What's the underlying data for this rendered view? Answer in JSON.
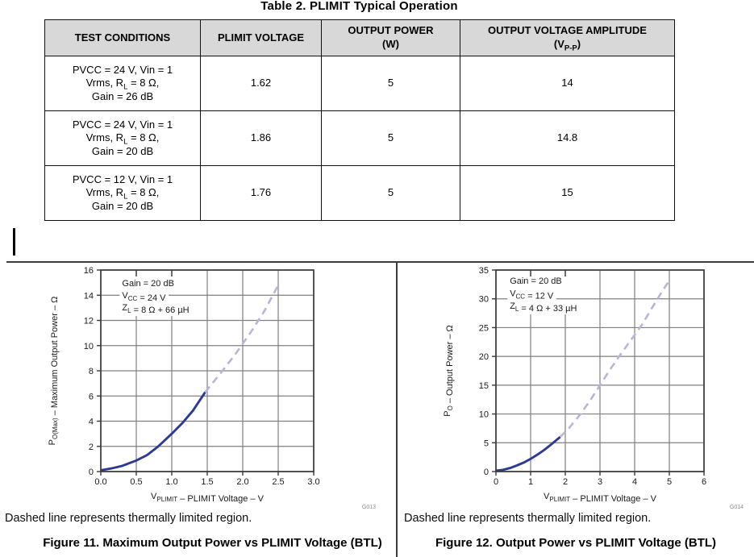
{
  "colors": {
    "solid_curve": "#2b3a97",
    "dashed_curve": "#b7b6da",
    "grid": "#808080",
    "plot_border": "#3a3a3a",
    "table_header_bg": "#d8d8d8",
    "rule": "#3c3c3c",
    "graph_id_text": "#8c8c8c"
  },
  "table": {
    "title": "Table 2. PLIMIT Typical Operation",
    "headers": [
      [
        [
          {
            "t": "TEST CONDITIONS"
          }
        ]
      ],
      [
        [
          {
            "t": "PLIMIT VOLTAGE"
          }
        ]
      ],
      [
        [
          {
            "t": "OUTPUT POWER"
          }
        ],
        [
          {
            "t": "(W)"
          }
        ]
      ],
      [
        [
          {
            "t": "OUTPUT VOLTAGE AMPLITUDE"
          }
        ],
        [
          {
            "t": "(V"
          },
          {
            "t": "P-P",
            "sub": true
          },
          {
            "t": ")"
          }
        ]
      ]
    ],
    "rows": [
      {
        "test_conditions": [
          [
            {
              "t": "PVCC = 24 V, Vin = 1"
            }
          ],
          [
            {
              "t": "Vrms, R"
            },
            {
              "t": "L",
              "sub": true
            },
            {
              "t": " = 8 Ω,"
            }
          ],
          [
            {
              "t": "Gain = 26 dB"
            }
          ]
        ],
        "plimit_voltage": "1.62",
        "output_power": "5",
        "output_voltage_amplitude": "14"
      },
      {
        "test_conditions": [
          [
            {
              "t": "PVCC = 24 V, Vin = 1"
            }
          ],
          [
            {
              "t": "Vrms, R"
            },
            {
              "t": "L",
              "sub": true
            },
            {
              "t": " = 8 Ω,"
            }
          ],
          [
            {
              "t": "Gain = 20 dB"
            }
          ]
        ],
        "plimit_voltage": "1.86",
        "output_power": "5",
        "output_voltage_amplitude": "14.8"
      },
      {
        "test_conditions": [
          [
            {
              "t": "PVCC = 12 V, Vin = 1"
            }
          ],
          [
            {
              "t": "Vrms, R"
            },
            {
              "t": "L",
              "sub": true
            },
            {
              "t": " = 8 Ω,"
            }
          ],
          [
            {
              "t": "Gain = 20 dB"
            }
          ]
        ],
        "plimit_voltage": "1.76",
        "output_power": "5",
        "output_voltage_amplitude": "15"
      }
    ]
  },
  "figures": {
    "left_note": "Dashed line represents thermally limited region.",
    "right_note": "Dashed line represents thermally limited region.",
    "left_caption": "Figure 11. Maximum Output Power vs PLIMIT Voltage (BTL)",
    "right_caption": "Figure 12. Output Power vs PLIMIT Voltage (BTL)"
  },
  "chart_data": [
    {
      "type": "line",
      "title": "Figure 11. Maximum Output Power vs PLIMIT Voltage (BTL)",
      "note": "Dashed line represents thermally limited region.",
      "graph_id": "G013",
      "xlabel": "VPLIMIT – PLIMIT Voltage – V",
      "ylabel": "PO(Max) – Maximum Output Power – Ω",
      "xlabel_segments": [
        {
          "t": "V"
        },
        {
          "t": "PLIMIT",
          "sub": true
        },
        {
          "t": " – PLIMIT Voltage – V"
        }
      ],
      "ylabel_segments": [
        {
          "t": "P"
        },
        {
          "t": "O(Max)",
          "sub": true
        },
        {
          "t": " – Maximum Output Power – Ω"
        }
      ],
      "xlim": [
        0,
        3
      ],
      "ylim": [
        0,
        16
      ],
      "grid": true,
      "legend": "none",
      "xticks": [
        0,
        0.5,
        1,
        1.5,
        2,
        2.5,
        3
      ],
      "xtick_labels": [
        "0.0",
        "0.5",
        "1.0",
        "1.5",
        "2.0",
        "2.5",
        "3.0"
      ],
      "yticks": [
        0,
        2,
        4,
        6,
        8,
        10,
        12,
        14,
        16
      ],
      "ytick_labels": [
        "0",
        "2",
        "4",
        "6",
        "8",
        "10",
        "12",
        "14",
        "16"
      ],
      "top_ticks": [
        0.5,
        1
      ],
      "masked_vgrid": [
        0.5,
        1
      ],
      "annotation_lines": [
        [
          {
            "t": "Gain = 20 dB"
          }
        ],
        [
          {
            "t": "V"
          },
          {
            "t": "CC",
            "sub": true
          },
          {
            "t": " = 24 V"
          }
        ],
        [
          {
            "t": "Z"
          },
          {
            "t": "L",
            "sub": true
          },
          {
            "t": " = 8 Ω + 66 µH"
          }
        ]
      ],
      "series": [
        {
          "name": "typical-operation",
          "style": "solid",
          "points": [
            [
              0,
              0.1
            ],
            [
              0.15,
              0.25
            ],
            [
              0.3,
              0.45
            ],
            [
              0.5,
              0.88
            ],
            [
              0.65,
              1.3
            ],
            [
              0.8,
              1.95
            ],
            [
              1.0,
              3.0
            ],
            [
              1.15,
              3.85
            ],
            [
              1.3,
              4.85
            ],
            [
              1.47,
              6.3
            ]
          ]
        },
        {
          "name": "thermally-limited",
          "style": "dashed",
          "points": [
            [
              1.47,
              6.3
            ],
            [
              1.7,
              7.9
            ],
            [
              1.9,
              9.35
            ],
            [
              2.1,
              10.95
            ],
            [
              2.3,
              12.7
            ],
            [
              2.5,
              14.8
            ]
          ]
        }
      ]
    },
    {
      "type": "line",
      "title": "Figure 12. Output Power vs PLIMIT Voltage (BTL)",
      "note": "Dashed line represents thermally limited region.",
      "graph_id": "G014",
      "xlabel": "VPLIMIT – PLIMIT Voltage – V",
      "ylabel": "PO – Output Power – Ω",
      "xlabel_segments": [
        {
          "t": "V"
        },
        {
          "t": "PLIMIT",
          "sub": true
        },
        {
          "t": " – PLIMIT Voltage – V"
        }
      ],
      "ylabel_segments": [
        {
          "t": "P"
        },
        {
          "t": "O",
          "sub": true
        },
        {
          "t": " – Output Power – Ω"
        }
      ],
      "xlim": [
        0,
        6
      ],
      "ylim": [
        0,
        35
      ],
      "grid": true,
      "legend": "none",
      "xticks": [
        0,
        1,
        2,
        3,
        4,
        5,
        6
      ],
      "xtick_labels": [
        "0",
        "1",
        "2",
        "3",
        "4",
        "5",
        "6"
      ],
      "yticks": [
        0,
        5,
        10,
        15,
        20,
        25,
        30,
        35
      ],
      "ytick_labels": [
        "0",
        "5",
        "10",
        "15",
        "20",
        "25",
        "30",
        "35"
      ],
      "top_ticks": [
        1,
        2
      ],
      "masked_vgrid": [
        1,
        2
      ],
      "annotation_lines": [
        [
          {
            "t": "Gain = 20 dB"
          }
        ],
        [
          {
            "t": "V"
          },
          {
            "t": "CC",
            "sub": true
          },
          {
            "t": " = 12 V"
          }
        ],
        [
          {
            "t": "Z"
          },
          {
            "t": "L",
            "sub": true
          },
          {
            "t": " = 4 Ω + 33 µH"
          }
        ]
      ],
      "series": [
        {
          "name": "typical-operation",
          "style": "solid",
          "points": [
            [
              0,
              0.15
            ],
            [
              0.2,
              0.3
            ],
            [
              0.4,
              0.6
            ],
            [
              0.6,
              1.05
            ],
            [
              0.8,
              1.55
            ],
            [
              1.0,
              2.2
            ],
            [
              1.2,
              2.95
            ],
            [
              1.4,
              3.8
            ],
            [
              1.6,
              4.75
            ],
            [
              1.85,
              6.0
            ]
          ]
        },
        {
          "name": "thermally-limited",
          "style": "dashed",
          "points": [
            [
              1.85,
              6.0
            ],
            [
              2.1,
              7.5
            ],
            [
              2.4,
              9.7
            ],
            [
              2.7,
              12.2
            ],
            [
              3.0,
              15.0
            ],
            [
              3.3,
              17.8
            ],
            [
              3.6,
              20.4
            ],
            [
              3.9,
              22.9
            ],
            [
              4.2,
              25.4
            ],
            [
              4.5,
              28.4
            ],
            [
              4.75,
              30.9
            ],
            [
              5.0,
              33.2
            ]
          ]
        }
      ]
    }
  ]
}
